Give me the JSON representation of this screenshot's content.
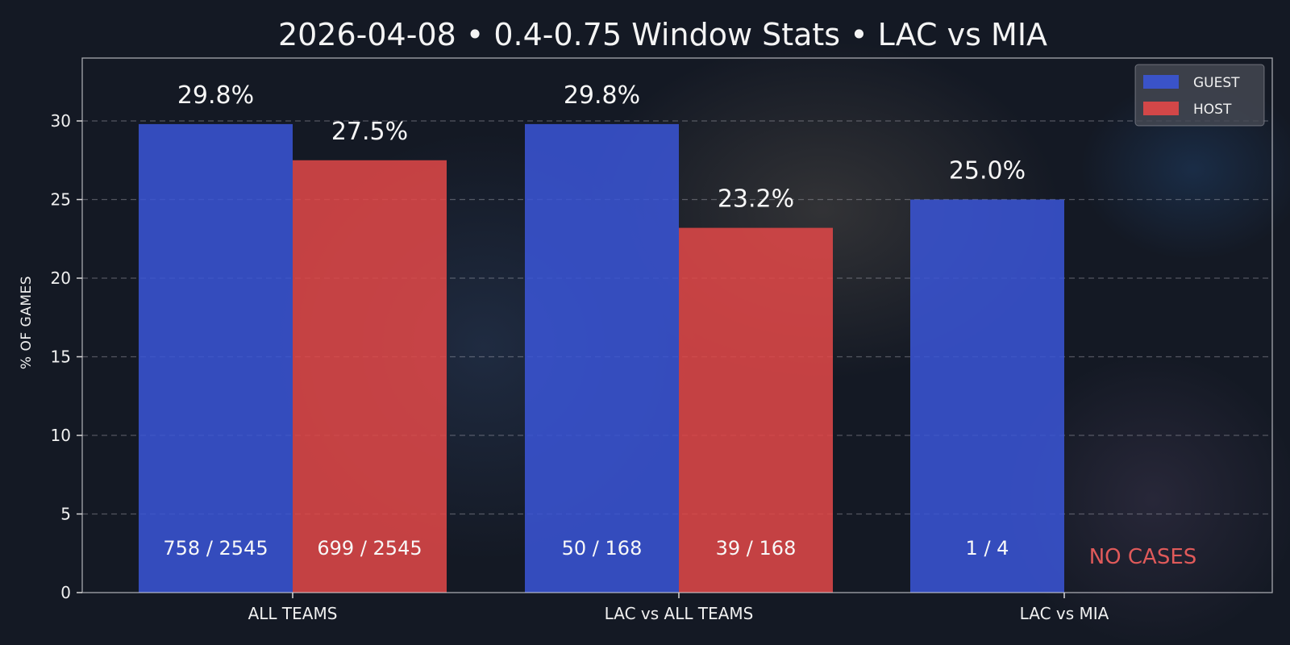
{
  "chart_data": {
    "type": "bar",
    "title": "2026-04-08 • 0.4-0.75 Window Stats • LAC vs MIA",
    "xlabel": "",
    "ylabel": "% OF GAMES",
    "ylim": [
      0,
      34
    ],
    "yticks": [
      0,
      5,
      10,
      15,
      20,
      25,
      30
    ],
    "grid": "horizontal dashed",
    "legend_position": "top-right",
    "categories": [
      "ALL TEAMS",
      "LAC vs ALL TEAMS",
      "LAC vs MIA"
    ],
    "series": [
      {
        "name": "GUEST",
        "color": "#3a55d6",
        "values": [
          29.8,
          29.8,
          25.0
        ],
        "value_labels": [
          "29.8%",
          "29.8%",
          "25.0%"
        ],
        "count_labels": [
          "758 / 2545",
          "50 / 168",
          "1 / 4"
        ]
      },
      {
        "name": "HOST",
        "color": "#e24848",
        "values": [
          27.5,
          23.2,
          null
        ],
        "value_labels": [
          "27.5%",
          "23.2%",
          null
        ],
        "count_labels": [
          "699 / 2545",
          "39 / 168",
          null
        ]
      }
    ],
    "annotations": [
      {
        "category_index": 2,
        "series": "HOST",
        "text": "NO CASES",
        "color": "#e05a5a"
      }
    ]
  }
}
